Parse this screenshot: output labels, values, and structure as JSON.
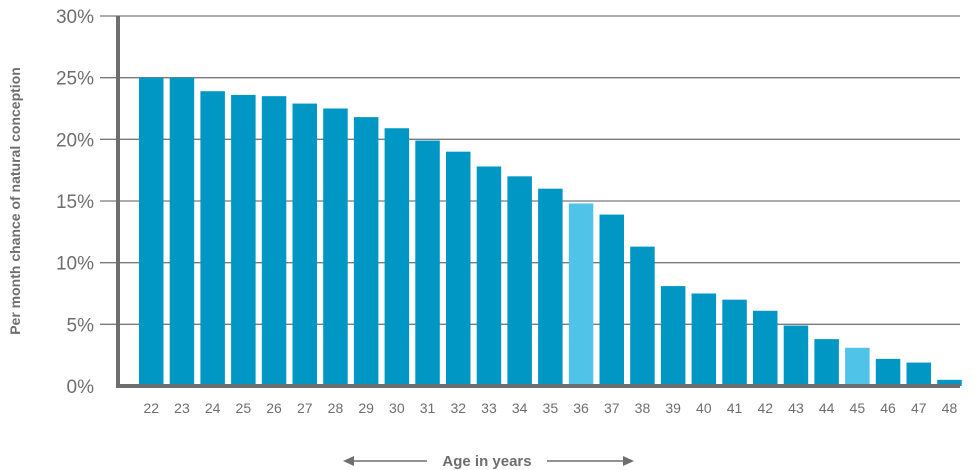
{
  "chart_data": {
    "type": "bar",
    "title": "",
    "xlabel": "Age in years",
    "ylabel": "Per month chance of natural conception",
    "ylim": [
      0,
      30
    ],
    "yticks": [
      "0%",
      "5%",
      "10%",
      "15%",
      "20%",
      "25%",
      "30%"
    ],
    "categories": [
      "22",
      "23",
      "24",
      "25",
      "26",
      "27",
      "28",
      "29",
      "30",
      "31",
      "32",
      "33",
      "34",
      "35",
      "36",
      "37",
      "38",
      "39",
      "40",
      "41",
      "42",
      "43",
      "44",
      "45",
      "46",
      "47",
      "48"
    ],
    "values": [
      25,
      25,
      23.9,
      23.6,
      23.5,
      22.9,
      22.5,
      21.8,
      20.9,
      19.9,
      19.0,
      17.8,
      17.0,
      16.0,
      14.8,
      13.9,
      11.3,
      8.1,
      7.5,
      7.0,
      6.1,
      4.9,
      3.8,
      3.1,
      2.2,
      1.9,
      0.5
    ],
    "highlighted": [
      "36",
      "45"
    ],
    "grid": true,
    "colors": {
      "bar": "#0097c4",
      "highlight": "#4fc3e8",
      "axis": "#6d6e71",
      "grid": "#7a7a7a"
    }
  }
}
